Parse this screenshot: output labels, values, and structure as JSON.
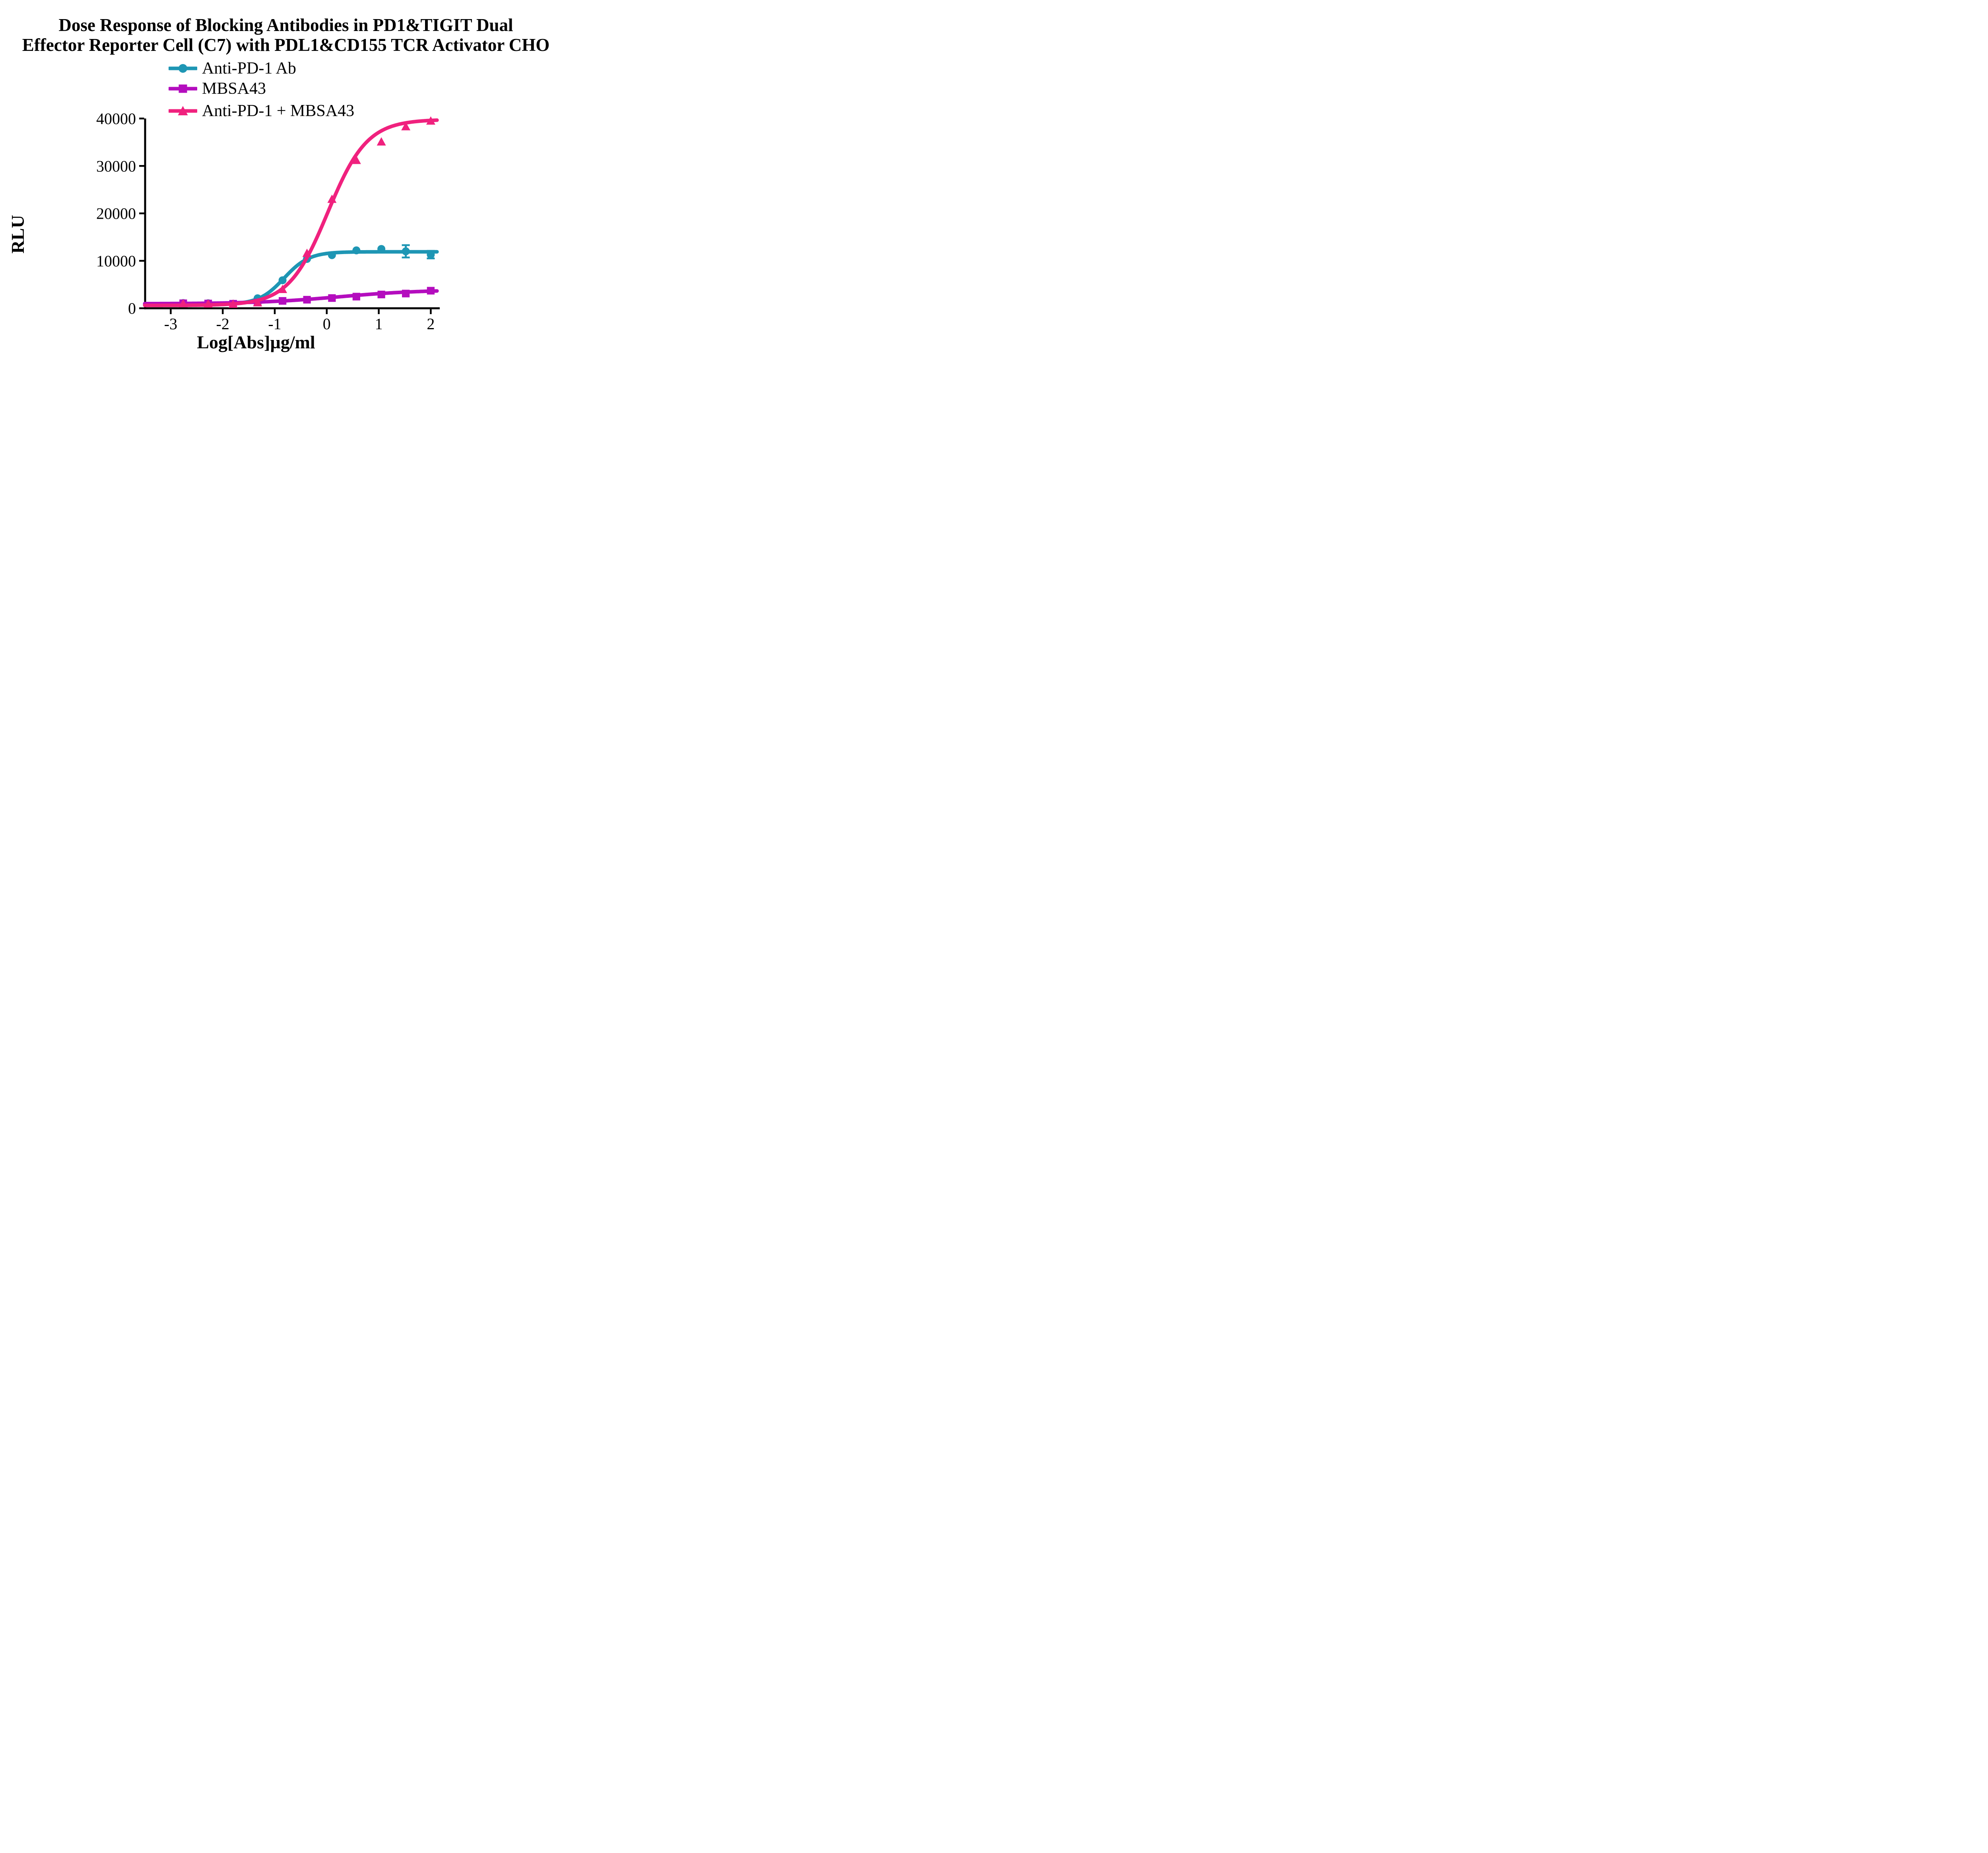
{
  "chart_data": {
    "type": "line",
    "title_line1": "Dose Response of Blocking Antibodies in PD1&TIGIT Dual",
    "title_line2": "Effector Reporter Cell (C7) with PDL1&CD155 TCR Activator CHO",
    "xlabel": "Log[Abs]µg/ml",
    "ylabel": "RLU",
    "x_ticks": [
      -3,
      -2,
      -1,
      0,
      1,
      2
    ],
    "y_ticks": [
      0,
      10000,
      20000,
      30000,
      40000
    ],
    "xlim": [
      -3.5,
      2.12
    ],
    "ylim": [
      0,
      40000
    ],
    "grid": false,
    "legend_position": "top-left",
    "background": "#FFFFFF",
    "axis_color": "#000000",
    "x": [
      -2.76,
      -2.28,
      -1.8,
      -1.33,
      -0.85,
      -0.38,
      0.1,
      0.57,
      1.05,
      1.52,
      2.0
    ],
    "series": [
      {
        "name": "Anti-PD-1 Ab",
        "color": "#1E96B4",
        "marker": "circle",
        "values": [
          1100,
          1050,
          950,
          2100,
          5900,
          10400,
          11200,
          12200,
          12500,
          12000,
          11300
        ],
        "errors": [
          0,
          0,
          0,
          0,
          0,
          0,
          0,
          0,
          0,
          1300,
          800
        ],
        "fit": {
          "bottom": 800,
          "top": 11900,
          "logec50": -0.82,
          "hill": 1.8
        }
      },
      {
        "name": "MBSA43",
        "color": "#B40DBE",
        "marker": "square",
        "values": [
          1050,
          1000,
          950,
          1200,
          1550,
          1800,
          2150,
          2450,
          2900,
          3100,
          3700
        ],
        "errors": [
          0,
          0,
          0,
          0,
          0,
          0,
          0,
          0,
          0,
          0,
          0
        ],
        "fit": {
          "bottom": 950,
          "top": 3900,
          "logec50": 0.25,
          "hill": 0.55
        }
      },
      {
        "name": "Anti-PD-1 + MBSA43",
        "color": "#F0217E",
        "marker": "triangle",
        "values": [
          1000,
          950,
          900,
          1200,
          4000,
          11600,
          23000,
          31200,
          35100,
          38300,
          39500
        ],
        "errors": [
          0,
          0,
          0,
          0,
          0,
          0,
          0,
          0,
          0,
          0,
          0
        ],
        "fit": {
          "bottom": 600,
          "top": 39800,
          "logec50": 0.02,
          "hill": 1.15
        }
      }
    ]
  }
}
